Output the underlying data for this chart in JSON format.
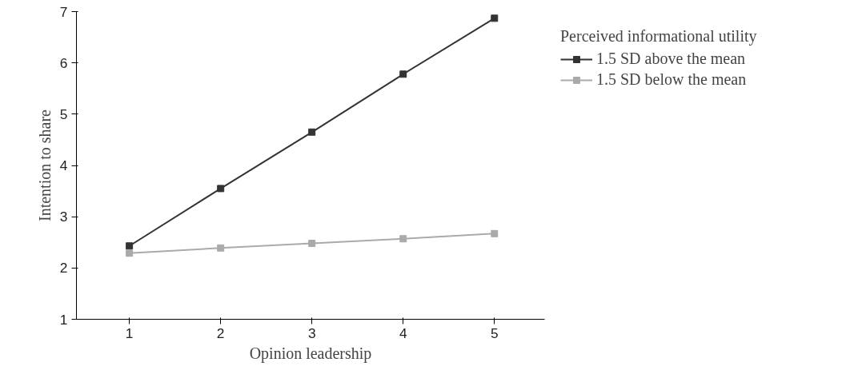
{
  "chart_data": {
    "type": "line",
    "xlabel": "Opinion leadership",
    "ylabel": "Intention to share",
    "legend_title": "Perceived informational utility",
    "x": [
      1,
      2,
      3,
      4,
      5
    ],
    "series": [
      {
        "name": "1.5 SD above the mean",
        "color": "#333333",
        "values": [
          2.43,
          3.55,
          4.65,
          5.78,
          6.87
        ]
      },
      {
        "name": "1.5 SD below the mean",
        "color": "#aaaaaa",
        "values": [
          2.29,
          2.39,
          2.48,
          2.57,
          2.67
        ]
      }
    ],
    "xlim": [
      0.42,
      5.55
    ],
    "ylim": [
      1,
      7
    ],
    "xticks": [
      1,
      2,
      3,
      4,
      5
    ],
    "yticks": [
      1,
      2,
      3,
      4,
      5,
      6,
      7
    ],
    "grid": false,
    "legend": "right",
    "marker": "square",
    "line_style": "solid"
  }
}
